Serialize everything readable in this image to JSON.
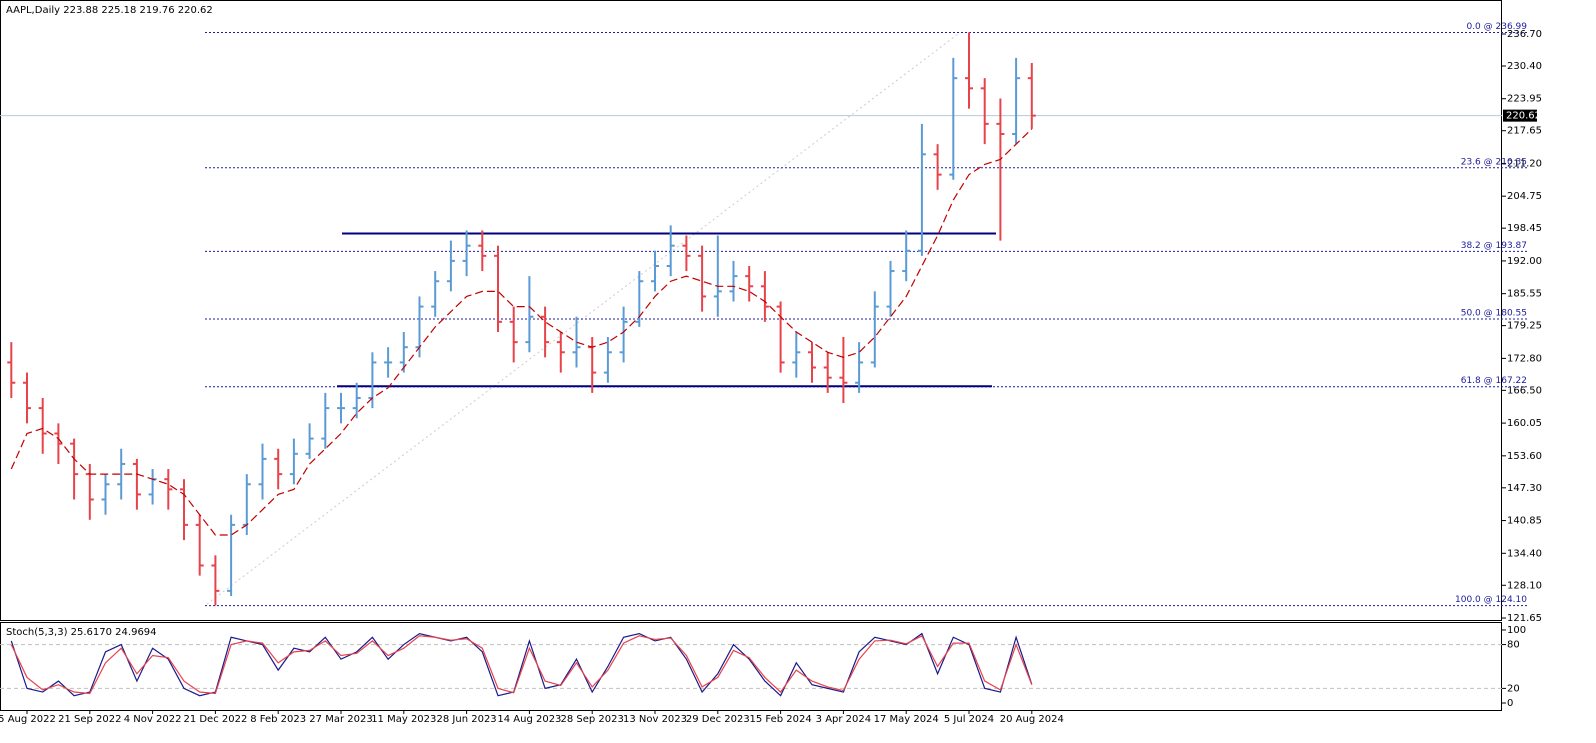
{
  "chart_data": [
    {
      "type": "ohlc",
      "title": "AAPL,Daily  223.88 225.18 219.76 220.62",
      "categories": [
        null,
        "5 Aug 2022",
        null,
        null,
        null,
        "21 Sep 2022",
        null,
        null,
        null,
        "4 Nov 2022",
        null,
        null,
        null,
        "21 Dec 2022",
        null,
        null,
        null,
        "8 Feb 2023",
        null,
        null,
        null,
        "27 Mar 2023",
        null,
        null,
        null,
        "11 May 2023",
        null,
        null,
        null,
        "28 Jun 2023",
        null,
        null,
        null,
        "14 Aug 2023",
        null,
        null,
        null,
        "28 Sep 2023",
        null,
        null,
        null,
        "13 Nov 2023",
        null,
        null,
        null,
        "29 Dec 2023",
        null,
        null,
        null,
        "15 Feb 2024",
        null,
        null,
        null,
        "3 Apr 2024",
        null,
        null,
        null,
        "17 May 2024",
        null,
        null,
        null,
        "5 Jul 2024",
        null,
        null,
        null,
        "20 Aug 2024"
      ],
      "open": [
        172,
        168,
        163,
        158,
        156,
        150,
        145,
        148,
        152,
        146,
        149,
        147,
        140,
        132,
        127,
        140,
        148,
        153,
        150,
        154,
        157,
        163,
        163,
        165,
        172,
        172,
        175,
        183,
        188,
        192,
        195,
        193,
        180,
        176,
        181,
        176,
        174,
        175,
        170,
        174,
        180,
        188,
        191,
        195,
        193,
        185,
        186,
        189,
        187,
        183,
        172,
        174,
        171,
        169,
        168,
        172,
        183,
        190,
        194,
        213,
        209,
        228,
        226,
        219,
        217,
        228
      ],
      "high": [
        176,
        170,
        165,
        160,
        157,
        152,
        150,
        155,
        153,
        151,
        151,
        149,
        142,
        134,
        142,
        150,
        156,
        155,
        157,
        160,
        166,
        166,
        168,
        174,
        175,
        178,
        185,
        190,
        196,
        198,
        198,
        195,
        183,
        189,
        183,
        178,
        181,
        177,
        177,
        183,
        190,
        194,
        199,
        197,
        195,
        197,
        192,
        191,
        190,
        184,
        178,
        176,
        174,
        177,
        176,
        186,
        192,
        198,
        219,
        215,
        232,
        237,
        228,
        224,
        232,
        231
      ],
      "low": [
        165,
        160,
        154,
        152,
        145,
        141,
        142,
        145,
        143,
        144,
        143,
        137,
        130,
        124.1,
        126,
        138,
        145,
        147,
        148,
        153,
        155,
        160,
        161,
        163,
        169,
        170,
        173,
        181,
        186,
        189,
        190,
        178,
        172,
        174,
        173,
        170,
        171,
        166,
        168,
        172,
        179,
        186,
        189,
        190,
        182,
        181,
        184,
        184,
        180,
        170,
        169,
        168,
        166,
        164,
        166,
        171,
        181,
        188,
        193,
        206,
        208,
        222,
        215,
        196,
        215,
        218
      ],
      "close": [
        168,
        163,
        158,
        156,
        150,
        145,
        148,
        152,
        146,
        149,
        147,
        140,
        132,
        127,
        140,
        148,
        153,
        150,
        154,
        157,
        163,
        163,
        165,
        172,
        172,
        175,
        183,
        188,
        192,
        195,
        193,
        180,
        176,
        181,
        176,
        174,
        175,
        170,
        174,
        180,
        188,
        191,
        195,
        193,
        185,
        186,
        189,
        187,
        183,
        172,
        174,
        171,
        169,
        168,
        172,
        183,
        190,
        194,
        213,
        209,
        228,
        226,
        219,
        217,
        228,
        220.62
      ],
      "up_color": "#5b9bd5",
      "down_color": "#e8434b",
      "ma": {
        "color": "#c00000",
        "values": [
          151,
          158,
          159,
          157,
          153,
          150,
          150,
          150,
          150,
          149,
          148,
          146,
          142,
          138,
          138,
          140,
          143,
          146,
          147,
          152,
          155,
          158,
          162,
          165,
          167,
          171,
          175,
          179,
          182,
          185,
          186,
          186,
          183,
          183,
          180,
          178,
          176,
          175,
          176,
          178,
          181,
          185,
          188,
          189,
          188,
          187,
          187,
          186,
          184,
          181,
          178,
          176,
          174,
          173,
          174,
          177,
          181,
          185,
          191,
          197,
          204,
          209,
          211,
          212,
          215,
          218
        ]
      },
      "ylim": [
        121.26,
        243.4
      ],
      "yticks": [
        {
          "value": 236.7,
          "label": "236.70"
        },
        {
          "value": 230.4,
          "label": "230.40"
        },
        223.95,
        217.65,
        {
          "value": 211.2,
          "label": "211.20"
        },
        204.75,
        198.45,
        {
          "value": 192,
          "label": "192.00"
        },
        185.55,
        179.25,
        {
          "value": 172.8,
          "label": "172.80"
        },
        {
          "value": 166.5,
          "label": "166.50"
        },
        160.05,
        {
          "value": 153.6,
          "label": "153.60"
        },
        {
          "value": 147.3,
          "label": "147.30"
        },
        140.85,
        {
          "value": 134.4,
          "label": "134.40"
        },
        {
          "value": 128.1,
          "label": "128.10"
        },
        121.65
      ],
      "last_price": 220.62,
      "fib_color": "#1c1c9c",
      "fib_levels": [
        {
          "value": 236.99,
          "label": "0.0 @ 236.99"
        },
        {
          "value": 210.35,
          "label": "23.6 @ 210.35"
        },
        {
          "value": 193.87,
          "label": "38.2 @ 193.87"
        },
        {
          "value": 180.55,
          "label": "50.0 @ 180.55"
        },
        {
          "value": 167.22,
          "label": "61.8 @ 167.22"
        },
        {
          "value": 124.1,
          "label": "100.0 @ 124.10"
        }
      ],
      "hline_color": "#000080",
      "hlines": [
        197.4,
        167.3
      ]
    },
    {
      "type": "line",
      "title": "Stoch(5,3,3) 25.6170 24.9694",
      "series": [
        {
          "color": "#1a1a8c",
          "values": [
            85,
            20,
            15,
            30,
            10,
            15,
            70,
            80,
            30,
            75,
            60,
            20,
            10,
            15,
            90,
            85,
            80,
            45,
            75,
            70,
            90,
            60,
            70,
            90,
            60,
            80,
            95,
            90,
            85,
            90,
            70,
            10,
            15,
            85,
            20,
            25,
            60,
            15,
            50,
            90,
            95,
            85,
            90,
            60,
            15,
            40,
            80,
            60,
            30,
            10,
            55,
            25,
            20,
            15,
            70,
            90,
            85,
            80,
            95,
            40,
            90,
            80,
            20,
            15,
            90,
            25.617
          ]
        },
        {
          "color": "#e8434b",
          "values": [
            80,
            35,
            18,
            25,
            15,
            13,
            55,
            75,
            40,
            65,
            62,
            30,
            15,
            13,
            80,
            85,
            82,
            55,
            70,
            72,
            85,
            65,
            68,
            85,
            65,
            75,
            92,
            90,
            86,
            88,
            75,
            20,
            14,
            75,
            30,
            24,
            55,
            22,
            45,
            82,
            92,
            87,
            89,
            65,
            22,
            35,
            72,
            62,
            35,
            15,
            45,
            30,
            22,
            17,
            60,
            85,
            86,
            81,
            92,
            50,
            82,
            82,
            30,
            18,
            80,
            24.9694
          ]
        }
      ],
      "ylim": [
        -9.6,
        110.9
      ],
      "yticks": [
        0,
        20,
        80,
        100
      ],
      "levels": [
        20,
        80
      ]
    }
  ]
}
